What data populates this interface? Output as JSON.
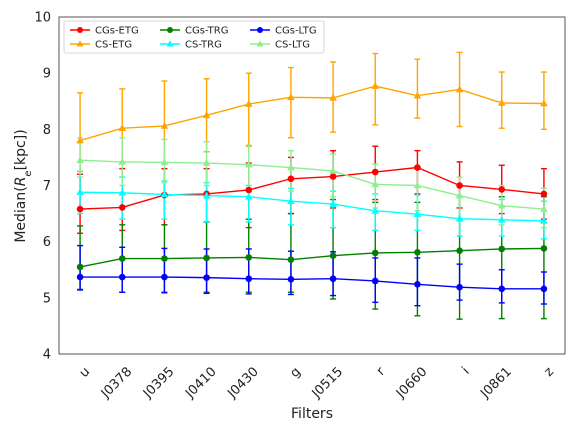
{
  "chart_data": {
    "type": "line",
    "xlabel": "Filters",
    "ylabel": "Median(R_e[kpc])",
    "ylabel_parts": {
      "prefix": "Median(",
      "var": "R",
      "sub": "e",
      "suffix": "[kpc])"
    },
    "ylim": [
      4,
      10
    ],
    "yticks": [
      "4",
      "5",
      "6",
      "7",
      "8",
      "9",
      "10"
    ],
    "categories": [
      "u",
      "J0378",
      "J0395",
      "J0410",
      "J0430",
      "g",
      "J0515",
      "r",
      "J0660",
      "i",
      "J0861",
      "z"
    ],
    "legend_position": "top-left",
    "grid": false,
    "series": [
      {
        "name": "CGs-ETG",
        "color": "#ff0000",
        "marker": "circle",
        "values": [
          6.58,
          6.61,
          6.83,
          6.85,
          6.92,
          7.12,
          7.16,
          7.24,
          7.32,
          7.0,
          6.93,
          6.85
        ],
        "err_low": [
          6.15,
          6.2,
          6.3,
          6.35,
          6.25,
          6.5,
          6.6,
          6.75,
          6.85,
          6.6,
          6.5,
          6.4
        ],
        "err_high": [
          7.2,
          7.3,
          7.3,
          7.3,
          7.4,
          7.5,
          7.62,
          7.7,
          7.62,
          7.42,
          7.36,
          7.3
        ]
      },
      {
        "name": "CS-ETG",
        "color": "#ffa500",
        "marker": "triangle",
        "values": [
          7.8,
          8.02,
          8.06,
          8.25,
          8.45,
          8.57,
          8.56,
          8.77,
          8.6,
          8.71,
          8.47,
          8.46
        ],
        "err_low": [
          7.25,
          7.4,
          7.4,
          7.6,
          7.7,
          7.85,
          7.95,
          8.08,
          8.2,
          8.05,
          8.02,
          8.0
        ],
        "err_high": [
          8.65,
          8.72,
          8.86,
          8.9,
          9.0,
          9.1,
          9.2,
          9.35,
          9.25,
          9.37,
          9.02,
          9.02
        ]
      },
      {
        "name": "CGs-TRG",
        "color": "#008000",
        "marker": "circle",
        "values": [
          5.55,
          5.7,
          5.7,
          5.71,
          5.72,
          5.68,
          5.75,
          5.8,
          5.81,
          5.84,
          5.87,
          5.88
        ],
        "err_low": [
          5.15,
          5.1,
          5.1,
          5.1,
          5.1,
          5.1,
          4.98,
          4.8,
          4.68,
          4.62,
          4.63,
          4.63
        ],
        "err_high": [
          6.28,
          6.3,
          6.3,
          6.35,
          6.4,
          6.5,
          6.75,
          6.7,
          6.7,
          6.8,
          6.8,
          6.8
        ]
      },
      {
        "name": "CS-TRG",
        "color": "#00ffff",
        "marker": "triangle",
        "values": [
          6.88,
          6.87,
          6.84,
          6.82,
          6.8,
          6.72,
          6.67,
          6.55,
          6.49,
          6.41,
          6.39,
          6.37
        ],
        "err_low": [
          6.5,
          6.4,
          6.4,
          6.35,
          6.35,
          6.3,
          6.25,
          6.2,
          6.2,
          6.1,
          6.1,
          6.05
        ],
        "err_high": [
          7.25,
          7.15,
          7.08,
          7.05,
          7.0,
          6.95,
          6.9,
          6.85,
          6.83,
          6.8,
          6.75,
          6.72
        ]
      },
      {
        "name": "CGs-LTG",
        "color": "#0000ff",
        "marker": "circle",
        "values": [
          5.37,
          5.37,
          5.37,
          5.36,
          5.34,
          5.33,
          5.34,
          5.3,
          5.24,
          5.19,
          5.16,
          5.16
        ],
        "err_low": [
          5.14,
          5.1,
          5.09,
          5.08,
          5.07,
          5.06,
          5.04,
          4.92,
          4.86,
          4.96,
          4.91,
          4.89
        ],
        "err_high": [
          5.93,
          5.9,
          5.88,
          5.87,
          5.87,
          5.83,
          5.82,
          5.71,
          5.71,
          5.6,
          5.5,
          5.46
        ]
      },
      {
        "name": "CS-LTG",
        "color": "#90ee90",
        "marker": "triangle",
        "values": [
          7.45,
          7.42,
          7.41,
          7.4,
          7.37,
          7.32,
          7.26,
          7.02,
          7.0,
          6.82,
          6.64,
          6.58
        ],
        "err_low": [
          7.15,
          7.0,
          7.05,
          7.0,
          6.95,
          6.9,
          6.8,
          6.6,
          6.55,
          6.4,
          6.3,
          6.25
        ],
        "err_high": [
          7.85,
          7.85,
          7.82,
          7.78,
          7.72,
          7.62,
          7.56,
          7.38,
          7.33,
          7.15,
          7.0,
          6.95
        ]
      }
    ]
  }
}
